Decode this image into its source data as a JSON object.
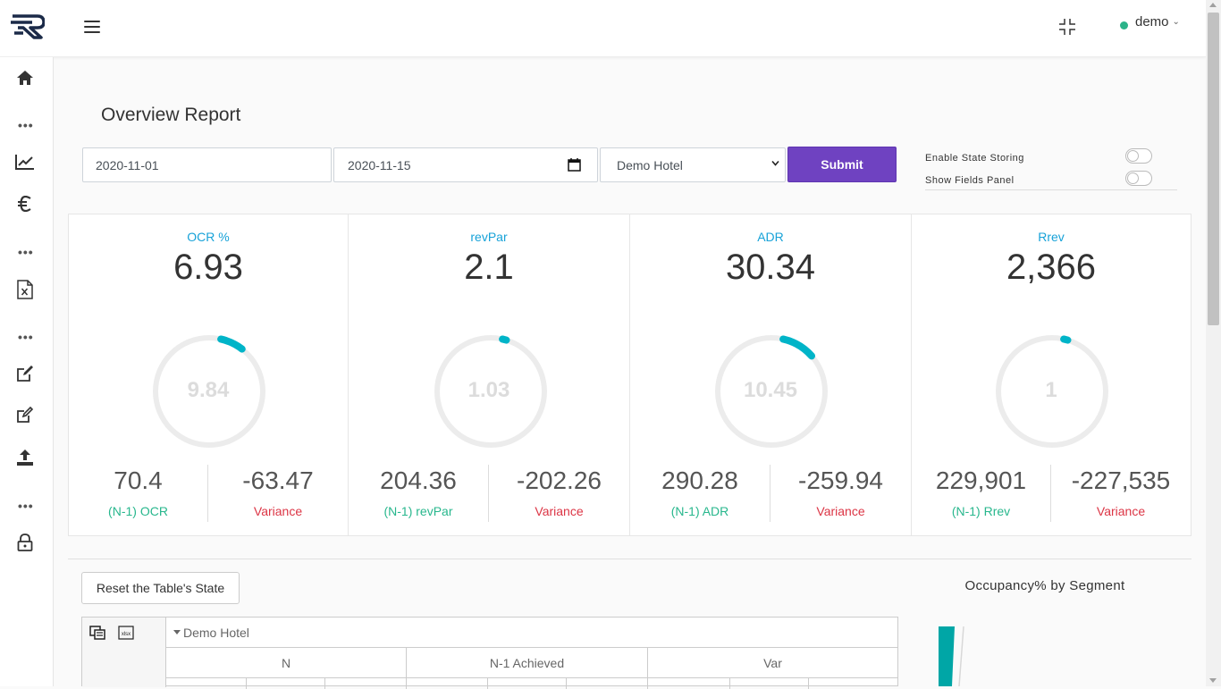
{
  "header": {
    "user_name": "demo"
  },
  "page": {
    "title": "Overview Report"
  },
  "filters": {
    "start_date": "2020-11-01",
    "end_date": "2020-11-15",
    "hotel": "Demo Hotel",
    "submit_label": "Submit"
  },
  "toggles": {
    "state_storing_label": "Enable State Storing",
    "state_storing_on": false,
    "fields_panel_label": "Show Fields Panel",
    "fields_panel_on": false
  },
  "kpis": [
    {
      "label": "OCR %",
      "value": "6.93",
      "gauge_center": "9.84",
      "gauge_fraction": 0.07,
      "n1_value": "70.4",
      "n1_label": "(N-1) OCR",
      "variance_value": "-63.47",
      "variance_label": "Variance"
    },
    {
      "label": "revPar",
      "value": "2.1",
      "gauge_center": "1.03",
      "gauge_fraction": 0.01,
      "n1_value": "204.36",
      "n1_label": "(N-1) revPar",
      "variance_value": "-202.26",
      "variance_label": "Variance"
    },
    {
      "label": "ADR",
      "value": "30.34",
      "gauge_center": "10.45",
      "gauge_fraction": 0.1,
      "n1_value": "290.28",
      "n1_label": "(N-1) ADR",
      "variance_value": "-259.94",
      "variance_label": "Variance"
    },
    {
      "label": "Rrev",
      "value": "2,366",
      "gauge_center": "1",
      "gauge_fraction": 0.01,
      "n1_value": "229,901",
      "n1_label": "(N-1) Rrev",
      "variance_value": "-227,535",
      "variance_label": "Variance"
    }
  ],
  "table": {
    "reset_label": "Reset the Table's State",
    "hotel_header": "Demo Hotel",
    "columns": [
      "N",
      "N-1 Achieved",
      "Var"
    ]
  },
  "segment_chart": {
    "title": "Occupancy% by Segment"
  },
  "colors": {
    "accent": "#17a2d8",
    "gauge_arc": "#00b4c8",
    "positive": "#28b78d",
    "negative": "#dc3545",
    "submit": "#6f42c1"
  }
}
